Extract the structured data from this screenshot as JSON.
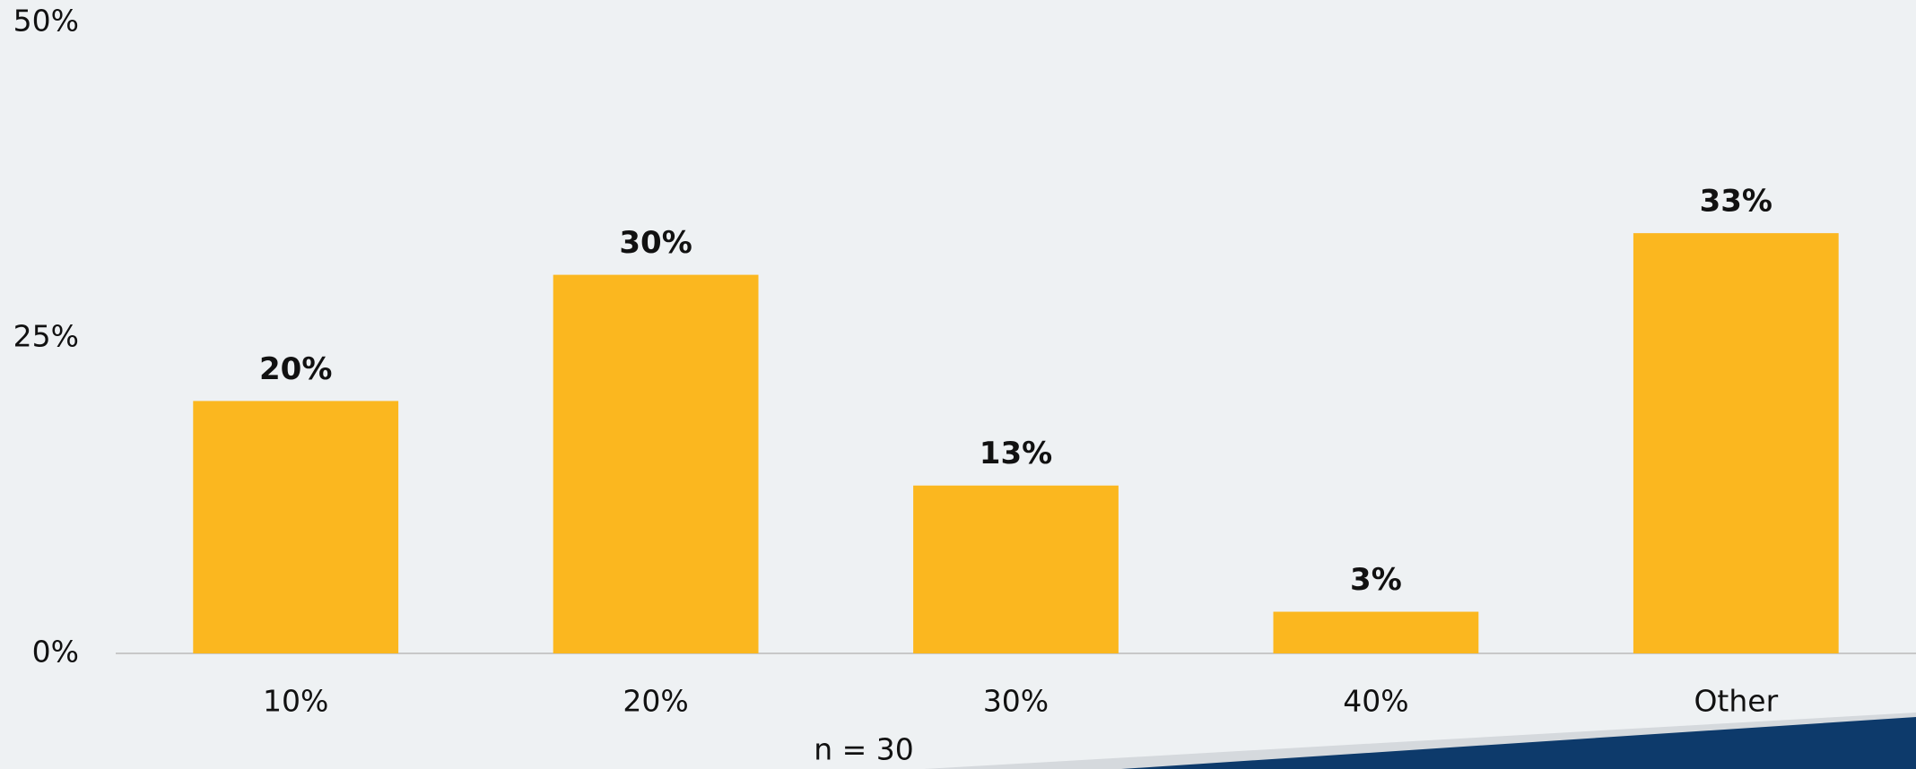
{
  "chart_data": {
    "type": "bar",
    "categories": [
      "10%",
      "20%",
      "30%",
      "40%",
      "Other"
    ],
    "values": [
      20,
      30,
      13.3,
      3.3,
      33.3
    ],
    "value_labels": [
      "20%",
      "30%",
      "13%",
      "3%",
      "33%"
    ],
    "color": "#fbb71f",
    "ylim": [
      0,
      50
    ],
    "yticks": [
      {
        "value": 0,
        "label": "0%"
      },
      {
        "value": 25,
        "label": "25%"
      },
      {
        "value": 50,
        "label": "50%"
      }
    ],
    "grid": false,
    "note": "n = 30"
  }
}
